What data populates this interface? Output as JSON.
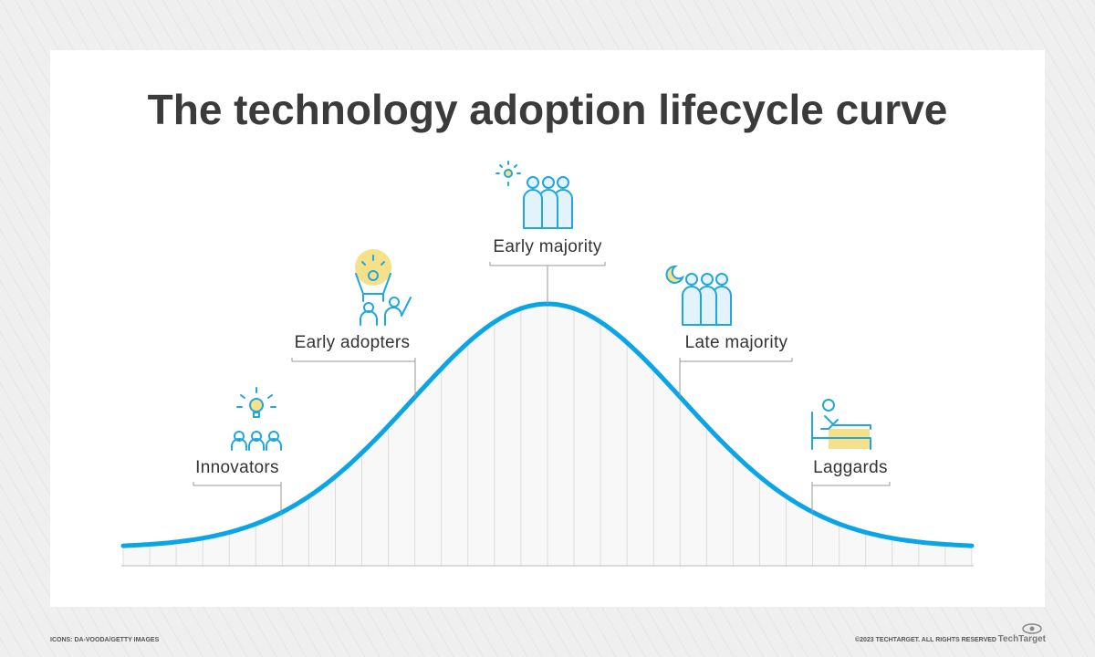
{
  "header": {
    "title": "The technology adoption lifecycle curve"
  },
  "stages": [
    {
      "label": "Innovators"
    },
    {
      "label": "Early adopters"
    },
    {
      "label": "Early majority"
    },
    {
      "label": "Late majority"
    },
    {
      "label": "Laggards"
    }
  ],
  "footer": {
    "credit": "ICONS: DA-VOODA/GETTY IMAGES",
    "copyright": "©2023 TECHTARGET. ALL RIGHTS RESERVED",
    "logo": "TechTarget"
  }
}
